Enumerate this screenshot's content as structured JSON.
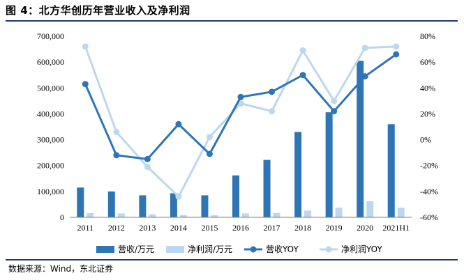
{
  "title": "图 4：北方华创历年营业收入及净利润",
  "source": "数据来源：Wind，东北证券",
  "colors": {
    "revenue_bar": "#2e75b6",
    "profit_bar": "#bdd7ee",
    "revenue_yoy": "#2e75b6",
    "profit_yoy": "#bdd7ee",
    "rule": "#1f3a6e"
  },
  "chart_data": {
    "type": "bar",
    "categories": [
      "2011",
      "2012",
      "2013",
      "2014",
      "2015",
      "2016",
      "2017",
      "2018",
      "2019",
      "2020",
      "2021H1"
    ],
    "series": [
      {
        "name": "营收/万元",
        "type": "bar",
        "axis": "left",
        "values": [
          115000,
          100000,
          85000,
          93000,
          85000,
          162000,
          222000,
          330000,
          406000,
          605000,
          360000
        ]
      },
      {
        "name": "净利润/万元",
        "type": "bar",
        "axis": "left",
        "values": [
          16000,
          15000,
          12000,
          9000,
          8000,
          15000,
          17000,
          26000,
          37000,
          62000,
          37000
        ]
      },
      {
        "name": "营收YOY",
        "type": "line",
        "axis": "right",
        "values": [
          43,
          -12,
          -15,
          12,
          -11,
          33,
          37,
          50,
          22,
          49,
          66
        ]
      },
      {
        "name": "净利润YOY",
        "type": "line",
        "axis": "right",
        "values": [
          72,
          6,
          -21,
          -44,
          2,
          28,
          22,
          69,
          30,
          71,
          72
        ]
      }
    ],
    "ylim": [
      0,
      700000
    ],
    "y_ticks": [
      "0",
      "100,000",
      "200,000",
      "300,000",
      "400,000",
      "500,000",
      "600,000",
      "700,000"
    ],
    "y2lim": [
      -60,
      80
    ],
    "y2_ticks": [
      "-60%",
      "-40%",
      "-20%",
      "0%",
      "20%",
      "40%",
      "60%",
      "80%"
    ],
    "legend_position": "bottom",
    "grid": false
  }
}
